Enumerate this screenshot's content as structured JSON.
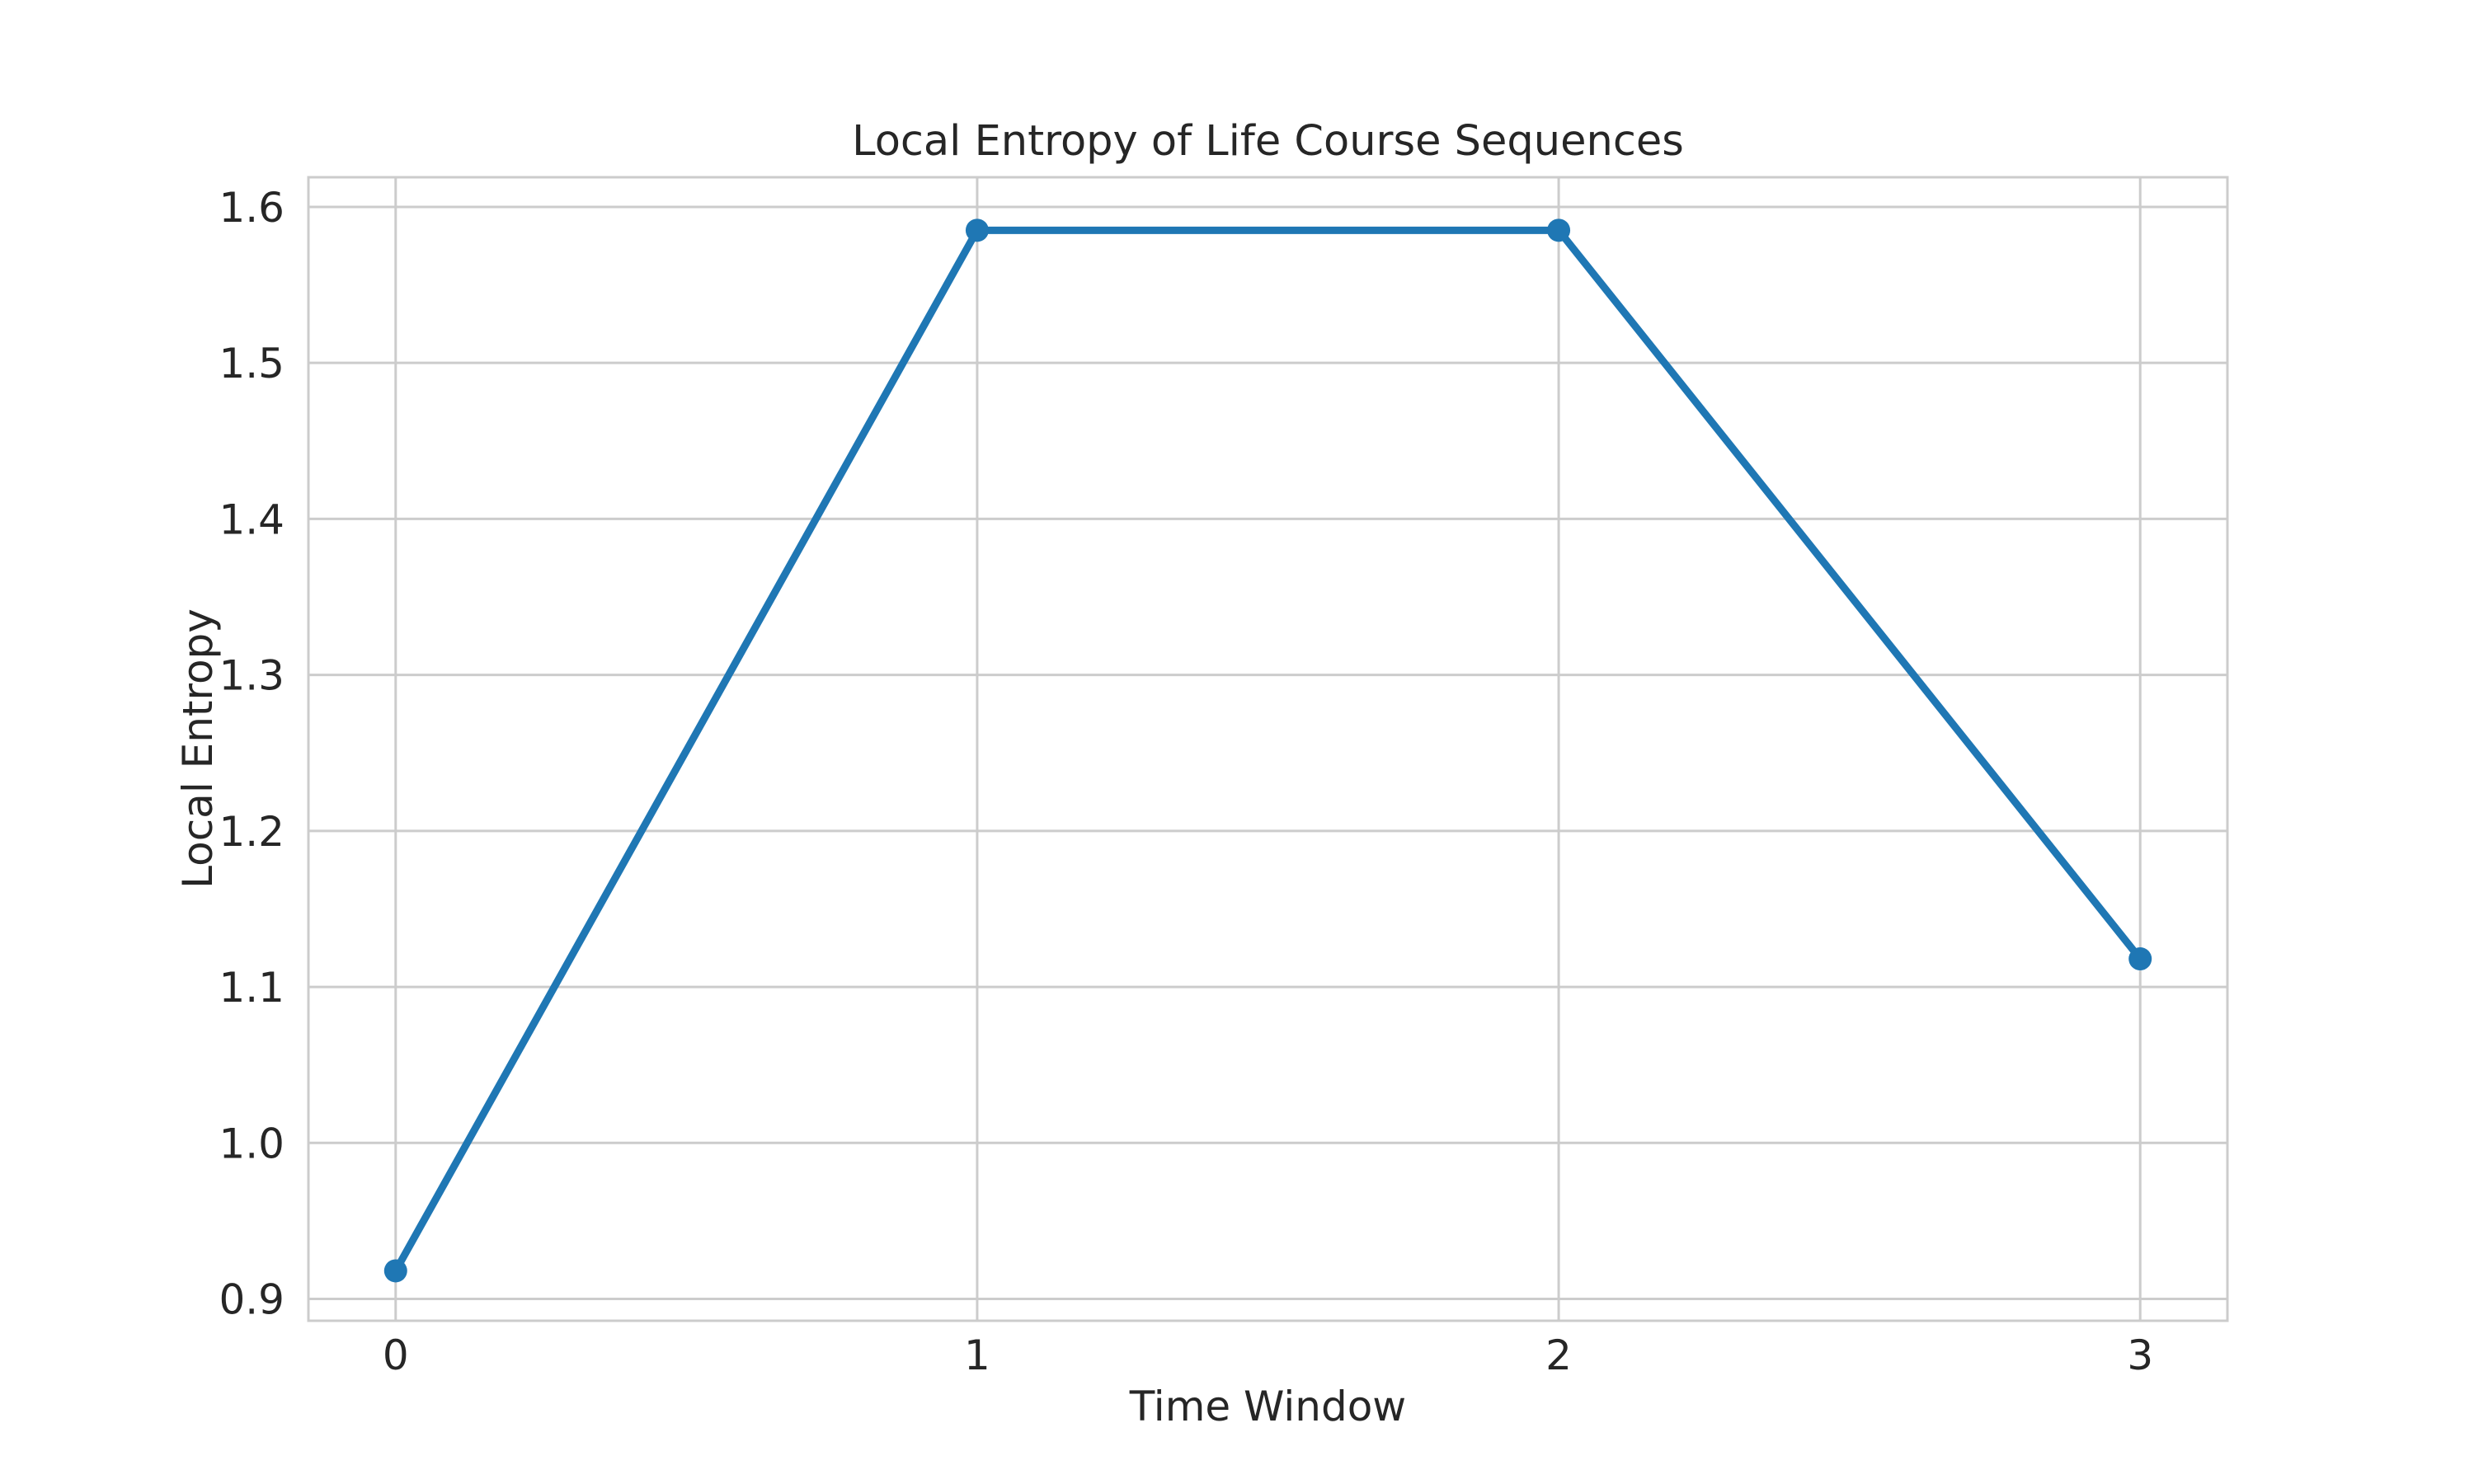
{
  "chart_data": {
    "type": "line",
    "title": "Local Entropy of Life Course Sequences",
    "xlabel": "Time Window",
    "ylabel": "Local Entropy",
    "x": [
      0,
      1,
      2,
      3
    ],
    "values": [
      0.918,
      1.585,
      1.585,
      1.118
    ],
    "series": [
      {
        "name": "Local Entropy",
        "values": [
          0.918,
          1.585,
          1.585,
          1.118
        ]
      }
    ],
    "xticks": [
      0,
      1,
      2,
      3
    ],
    "xticklabels": [
      "0",
      "1",
      "2",
      "3"
    ],
    "yticks": [
      0.9,
      1.0,
      1.1,
      1.2,
      1.3,
      1.4,
      1.5,
      1.6
    ],
    "yticklabels": [
      "0.9",
      "1.0",
      "1.1",
      "1.2",
      "1.3",
      "1.4",
      "1.5",
      "1.6"
    ],
    "xlim": [
      -0.15,
      3.15
    ],
    "ylim": [
      0.886,
      1.619
    ],
    "grid": true,
    "legend_position": "none",
    "line_color": "#1f77b4",
    "marker": "o",
    "grid_color": "#cccccc",
    "spine_color": "#cccccc",
    "text_color": "#262626",
    "background_color": "#ffffff"
  }
}
